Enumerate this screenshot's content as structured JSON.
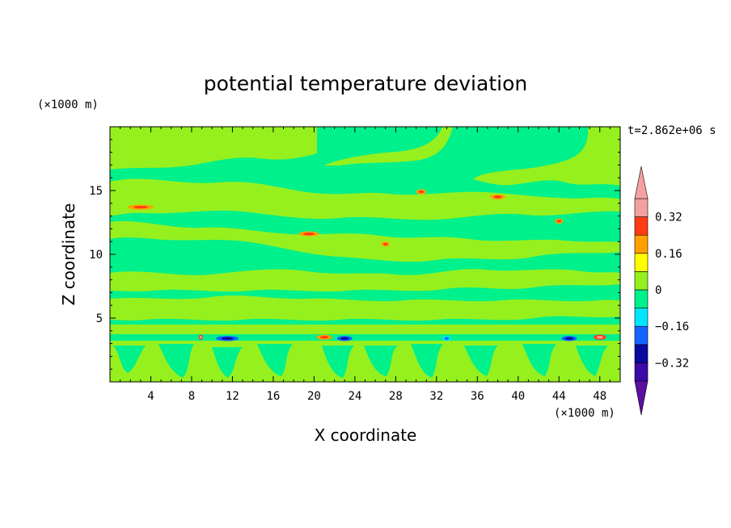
{
  "chart_data": {
    "type": "heatmap",
    "title": "potential temperature deviation",
    "xlabel": "X coordinate",
    "ylabel": "Z coordinate",
    "x_unit": "(×1000 m)",
    "y_unit": "(×1000 m)",
    "time_label": "t=2.862e+06 s",
    "xlim": [
      0,
      50
    ],
    "ylim": [
      0,
      20
    ],
    "x_ticks": [
      4,
      8,
      12,
      16,
      20,
      24,
      28,
      32,
      36,
      40,
      44,
      48
    ],
    "y_ticks": [
      5,
      10,
      15
    ],
    "colorbar": {
      "levels": [
        -0.4,
        -0.32,
        -0.24,
        -0.16,
        -0.08,
        0,
        0.08,
        0.16,
        0.24,
        0.32,
        0.4
      ],
      "colors": [
        "#5a0fa0",
        "#3b0aa8",
        "#0a0a9e",
        "#1464ff",
        "#00e6ff",
        "#00f08c",
        "#96f01e",
        "#ffff00",
        "#ffa000",
        "#ff3c14",
        "#f5a0a0"
      ],
      "tick_labels": [
        "0.32",
        "0.16",
        "0",
        "−0.16",
        "−0.32"
      ],
      "tick_values": [
        0.32,
        0.16,
        0,
        -0.16,
        -0.32
      ]
    },
    "background_level": "0",
    "features": [
      {
        "x": 11.5,
        "z": 3.4,
        "w": 2.2,
        "value": -0.2
      },
      {
        "x": 23.0,
        "z": 3.4,
        "w": 1.5,
        "value": -0.18
      },
      {
        "x": 33.0,
        "z": 3.4,
        "w": 0.8,
        "value": -0.16
      },
      {
        "x": 45.0,
        "z": 3.4,
        "w": 1.5,
        "value": -0.18
      },
      {
        "x": 8.9,
        "z": 3.5,
        "w": 0.4,
        "value": 0.3
      },
      {
        "x": 48.0,
        "z": 3.5,
        "w": 1.2,
        "value": 0.3
      },
      {
        "x": 21.0,
        "z": 3.5,
        "w": 1.5,
        "value": 0.2
      },
      {
        "x": 3.0,
        "z": 13.7,
        "w": 2.5,
        "value": 0.18
      },
      {
        "x": 19.5,
        "z": 11.6,
        "w": 2.0,
        "value": 0.18
      },
      {
        "x": 38.0,
        "z": 14.5,
        "w": 1.5,
        "value": 0.18
      },
      {
        "x": 30.5,
        "z": 14.9,
        "w": 1.0,
        "value": 0.16
      },
      {
        "x": 44.0,
        "z": 12.6,
        "w": 0.8,
        "value": 0.16
      },
      {
        "x": 27.0,
        "z": 10.8,
        "w": 0.8,
        "value": 0.16
      }
    ]
  }
}
